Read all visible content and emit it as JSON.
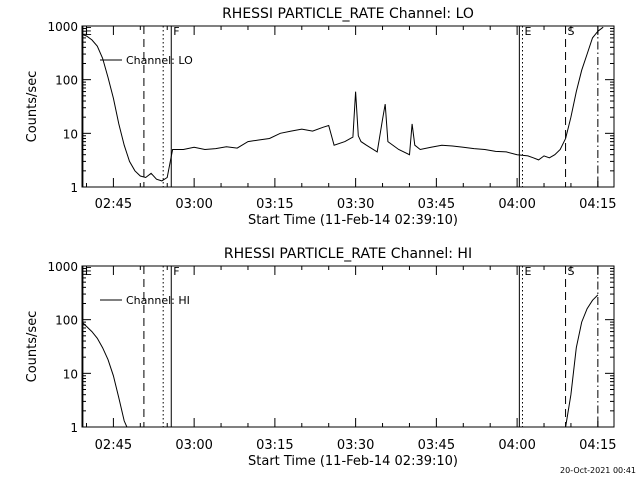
{
  "footer": {
    "date_stamp": "20-Oct-2021 00:41"
  },
  "chart_data": [
    {
      "type": "line",
      "title": "RHESSI PARTICLE_RATE Channel: LO",
      "xlabel": "Start Time (11-Feb-14 02:39:10)",
      "ylabel": "Counts/sec",
      "y_scale": "log",
      "ylim": [
        1,
        1000
      ],
      "xlim": [
        "02:39:10",
        "04:18:00"
      ],
      "x_unit": "time (hh:mm)",
      "x_tick_labels": [
        "02:45",
        "03:00",
        "03:15",
        "03:30",
        "03:45",
        "04:00",
        "04:15"
      ],
      "y_tick_labels": [
        "1",
        "10",
        "100",
        "1000"
      ],
      "legend": {
        "label": "Channel: LO",
        "placement": "upper-left"
      },
      "markers": [
        {
          "label": "E",
          "time": "02:39:20",
          "style": "solid"
        },
        {
          "label": "",
          "time": "02:50:40",
          "style": "dashed"
        },
        {
          "label": "",
          "time": "02:54:15",
          "style": "dotted"
        },
        {
          "label": "F",
          "time": "02:55:45",
          "style": "solid"
        },
        {
          "label": "",
          "time": "04:00:25",
          "style": "solid"
        },
        {
          "label": "E",
          "time": "04:01:00",
          "style": "dotted"
        },
        {
          "label": "S",
          "time": "04:09:00",
          "style": "dashed"
        },
        {
          "label": "",
          "time": "04:15:00",
          "style": "dashdot"
        }
      ],
      "series": [
        {
          "name": "Channel: LO",
          "x": [
            "02:39:10",
            "02:40:00",
            "02:41:00",
            "02:42:00",
            "02:43:00",
            "02:44:00",
            "02:45:00",
            "02:46:00",
            "02:47:00",
            "02:48:00",
            "02:49:00",
            "02:50:00",
            "02:51:00",
            "02:52:00",
            "02:53:00",
            "02:54:00",
            "02:55:00",
            "02:56:00",
            "02:58:00",
            "03:00:00",
            "03:02:00",
            "03:04:00",
            "03:06:00",
            "03:08:00",
            "03:10:00",
            "03:12:00",
            "03:14:00",
            "03:16:00",
            "03:18:00",
            "03:20:00",
            "03:22:00",
            "03:24:00",
            "03:25:00",
            "03:26:00",
            "03:28:00",
            "03:29:30",
            "03:30:00",
            "03:30:30",
            "03:31:00",
            "03:32:00",
            "03:34:00",
            "03:35:00",
            "03:35:30",
            "03:36:00",
            "03:38:00",
            "03:40:00",
            "03:40:30",
            "03:41:00",
            "03:42:00",
            "03:44:00",
            "03:46:00",
            "03:48:00",
            "03:50:00",
            "03:52:00",
            "03:54:00",
            "03:56:00",
            "03:58:00",
            "04:00:00",
            "04:02:00",
            "04:03:00",
            "04:04:00",
            "04:05:00",
            "04:06:00",
            "04:07:00",
            "04:08:00",
            "04:09:00",
            "04:10:00",
            "04:11:00",
            "04:12:00",
            "04:13:00",
            "04:14:00",
            "04:15:00",
            "04:16:00"
          ],
          "y": [
            700,
            650,
            550,
            420,
            250,
            110,
            45,
            15,
            6,
            3,
            2,
            1.6,
            1.5,
            1.8,
            1.4,
            1.3,
            1.5,
            5,
            5,
            5.5,
            5,
            5.2,
            5.6,
            5.3,
            7,
            7.5,
            8,
            10,
            11,
            12,
            11,
            13,
            14,
            6,
            7,
            8.5,
            60,
            9,
            7,
            6,
            4.5,
            18,
            35,
            7,
            5,
            4,
            15,
            6,
            5,
            5.5,
            6,
            5.8,
            5.5,
            5.2,
            5,
            4.6,
            4.5,
            4,
            3.8,
            3.5,
            3.2,
            3.8,
            3.5,
            4,
            5,
            8,
            20,
            60,
            150,
            300,
            600,
            800,
            950
          ]
        }
      ]
    },
    {
      "type": "line",
      "title": "RHESSI PARTICLE_RATE Channel: HI",
      "xlabel": "Start Time (11-Feb-14 02:39:10)",
      "ylabel": "Counts/sec",
      "y_scale": "log",
      "ylim": [
        1,
        1000
      ],
      "xlim": [
        "02:39:10",
        "04:18:00"
      ],
      "x_unit": "time (hh:mm)",
      "x_tick_labels": [
        "02:45",
        "03:00",
        "03:15",
        "03:30",
        "03:45",
        "04:00",
        "04:15"
      ],
      "y_tick_labels": [
        "1",
        "10",
        "100",
        "1000"
      ],
      "legend": {
        "label": "Channel: HI",
        "placement": "upper-left"
      },
      "markers": [
        {
          "label": "E",
          "time": "02:39:20",
          "style": "solid"
        },
        {
          "label": "",
          "time": "02:50:40",
          "style": "dashed"
        },
        {
          "label": "",
          "time": "02:54:15",
          "style": "dotted"
        },
        {
          "label": "F",
          "time": "02:55:45",
          "style": "solid"
        },
        {
          "label": "",
          "time": "04:00:25",
          "style": "solid"
        },
        {
          "label": "E",
          "time": "04:01:00",
          "style": "dotted"
        },
        {
          "label": "S",
          "time": "04:09:00",
          "style": "dashed"
        },
        {
          "label": "",
          "time": "04:15:00",
          "style": "dashdot"
        }
      ],
      "series": [
        {
          "name": "Channel: HI",
          "x": [
            "02:39:10",
            "02:40:00",
            "02:41:00",
            "02:42:00",
            "02:43:00",
            "02:44:00",
            "02:45:00",
            "02:46:00",
            "02:47:00",
            "02:47:30",
            "04:09:00",
            "04:10:00",
            "04:11:00",
            "04:12:00",
            "04:13:00",
            "04:14:00",
            "04:15:00"
          ],
          "y": [
            90,
            75,
            60,
            45,
            30,
            18,
            9,
            3.5,
            1.3,
            1.0,
            1.0,
            4,
            30,
            90,
            160,
            230,
            290
          ]
        }
      ]
    }
  ]
}
